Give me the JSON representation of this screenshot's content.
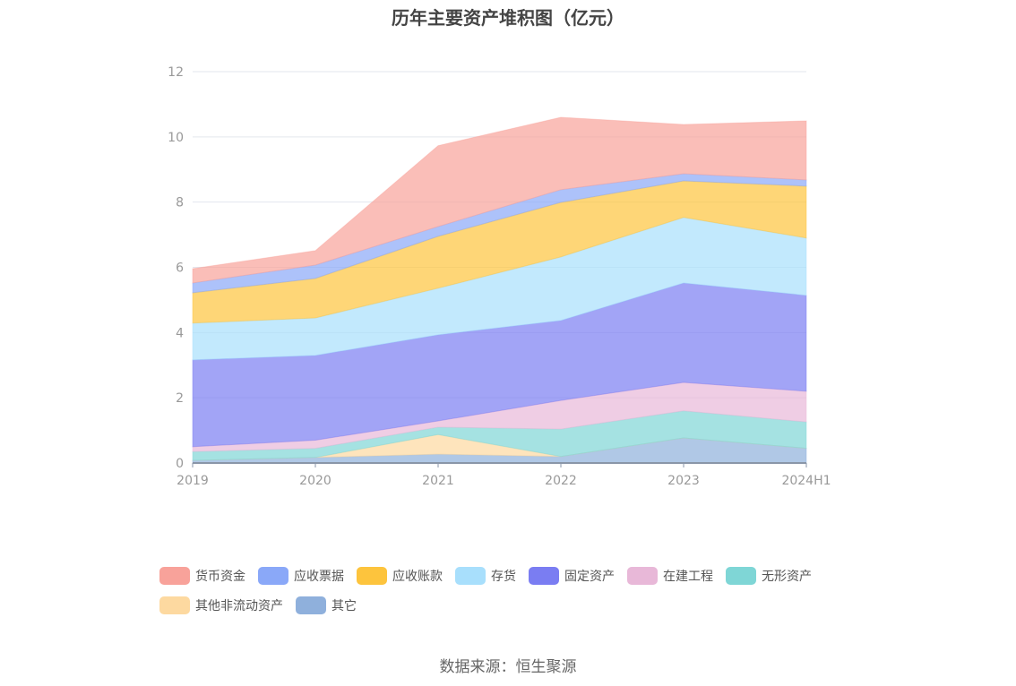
{
  "title": "历年主要资产堆积图（亿元）",
  "source": "数据来源：恒生聚源",
  "chart_data": {
    "type": "area",
    "stacked": true,
    "title": "历年主要资产堆积图（亿元）",
    "categories": [
      "2019",
      "2020",
      "2021",
      "2022",
      "2023",
      "2024H1"
    ],
    "ylim": [
      0,
      12
    ],
    "yticks": [
      0,
      2,
      4,
      6,
      8,
      10,
      12
    ],
    "grid": true,
    "legend_position": "bottom",
    "series": [
      {
        "name": "其它",
        "color": "#8fb0dc",
        "values": [
          0.08,
          0.17,
          0.27,
          0.2,
          0.77,
          0.45
        ]
      },
      {
        "name": "其他非流动资产",
        "color": "#fdd9a0",
        "values": [
          0,
          0,
          0.6,
          0,
          0,
          0
        ]
      },
      {
        "name": "无形资产",
        "color": "#7fd6d6",
        "values": [
          0.27,
          0.28,
          0.23,
          0.84,
          0.83,
          0.81
        ]
      },
      {
        "name": "在建工程",
        "color": "#e8b8d8",
        "values": [
          0.15,
          0.25,
          0.19,
          0.88,
          0.87,
          0.94
        ]
      },
      {
        "name": "固定资产",
        "color": "#7a7df2",
        "values": [
          2.66,
          2.6,
          2.64,
          2.45,
          3.05,
          2.94
        ]
      },
      {
        "name": "存货",
        "color": "#a8dffc",
        "values": [
          1.13,
          1.15,
          1.43,
          1.95,
          2.01,
          1.76
        ]
      },
      {
        "name": "应收账款",
        "color": "#fdc43d",
        "values": [
          0.93,
          1.21,
          1.59,
          1.67,
          1.12,
          1.59
        ]
      },
      {
        "name": "应收票据",
        "color": "#8aa8f8",
        "values": [
          0.3,
          0.41,
          0.3,
          0.39,
          0.22,
          0.19
        ]
      },
      {
        "name": "货币资金",
        "color": "#f8a29a",
        "values": [
          0.44,
          0.44,
          2.48,
          2.22,
          1.51,
          1.81
        ]
      }
    ],
    "legend_order": [
      "货币资金",
      "应收票据",
      "应收账款",
      "存货",
      "固定资产",
      "在建工程",
      "无形资产",
      "其他非流动资产",
      "其它"
    ]
  }
}
